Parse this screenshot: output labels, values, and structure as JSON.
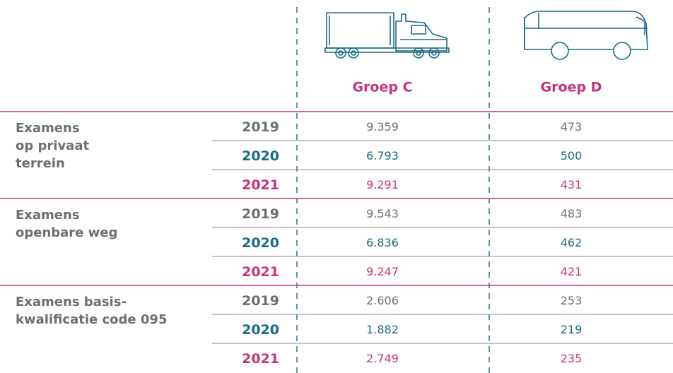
{
  "columns": [
    "Groep C",
    "Groep D"
  ],
  "groups": [
    {
      "label_lines": [
        "Examens",
        "op privaat",
        "terrein"
      ],
      "rows": [
        {
          "year": "2019",
          "values": [
            "9.359",
            "473"
          ]
        },
        {
          "year": "2020",
          "values": [
            "6.793",
            "500"
          ]
        },
        {
          "year": "2021",
          "values": [
            "9.291",
            "431"
          ]
        }
      ]
    },
    {
      "label_lines": [
        "Examens",
        "openbare weg"
      ],
      "rows": [
        {
          "year": "2019",
          "values": [
            "9.543",
            "483"
          ]
        },
        {
          "year": "2020",
          "values": [
            "6.836",
            "462"
          ]
        },
        {
          "year": "2021",
          "values": [
            "9.247",
            "421"
          ]
        }
      ]
    },
    {
      "label_lines": [
        "Examens basis-",
        "kwalificatie code 095"
      ],
      "rows": [
        {
          "year": "2019",
          "values": [
            "2.606",
            "253"
          ]
        },
        {
          "year": "2020",
          "values": [
            "1.882",
            "219"
          ]
        },
        {
          "year": "2021",
          "values": [
            "2.749",
            "235"
          ]
        }
      ]
    }
  ]
}
